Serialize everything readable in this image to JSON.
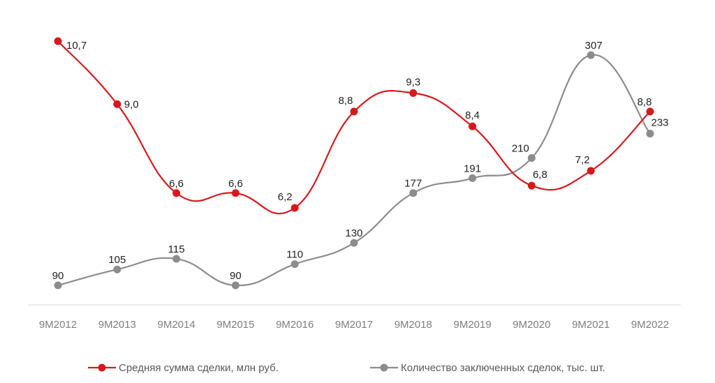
{
  "chart_data": {
    "type": "line",
    "categories": [
      "9M2012",
      "9M2013",
      "9M2014",
      "9M2015",
      "9M2016",
      "9M2017",
      "9M2018",
      "9M2019",
      "9M2020",
      "9M2021",
      "9M2022"
    ],
    "series": [
      {
        "name": "Средняя сумма сделки, млн руб.",
        "values": [
          10.7,
          9.0,
          6.6,
          6.6,
          6.2,
          8.8,
          9.3,
          8.4,
          6.8,
          7.2,
          8.8
        ],
        "labels": [
          "10,7",
          "9,0",
          "6,6",
          "6,6",
          "6,2",
          "8,8",
          "9,3",
          "8,4",
          "6,8",
          "7,2",
          "8,8"
        ],
        "color": "#d7191c",
        "axis": "secondary"
      },
      {
        "name": "Количество заключенных сделок, тыс. шт.",
        "values": [
          90,
          105,
          115,
          90,
          110,
          130,
          177,
          191,
          210,
          307,
          233
        ],
        "labels": [
          "90",
          "105",
          "115",
          "90",
          "110",
          "130",
          "177",
          "191",
          "210",
          "307",
          "233"
        ],
        "color": "#8c8c8c",
        "axis": "primary"
      }
    ],
    "smooth": true,
    "axis_line_color": "#d9d9d9",
    "grid": false,
    "legend_position": "bottom"
  }
}
